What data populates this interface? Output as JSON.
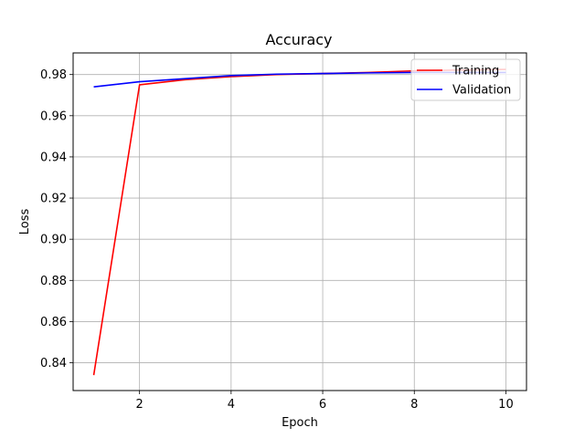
{
  "chart_data": {
    "type": "line",
    "title": "Accuracy",
    "xlabel": "Epoch",
    "ylabel": "Loss",
    "x": [
      1,
      2,
      3,
      4,
      5,
      6,
      7,
      8,
      9,
      10
    ],
    "xlim": [
      0.55,
      10.45
    ],
    "ylim": [
      0.8265,
      0.9905
    ],
    "xticks": [
      2,
      4,
      6,
      8,
      10
    ],
    "yticks": [
      0.84,
      0.86,
      0.88,
      0.9,
      0.92,
      0.94,
      0.96,
      0.98
    ],
    "ytick_labels": [
      "0.84",
      "0.86",
      "0.88",
      "0.90",
      "0.92",
      "0.94",
      "0.96",
      "0.98"
    ],
    "grid": true,
    "legend_position": "top-right",
    "series": [
      {
        "name": "Training",
        "color": "#ff0000",
        "values": [
          0.834,
          0.975,
          0.9775,
          0.979,
          0.98,
          0.9805,
          0.981,
          0.9818,
          0.9822,
          0.9825
        ]
      },
      {
        "name": "Validation",
        "color": "#0000ff",
        "values": [
          0.974,
          0.9765,
          0.978,
          0.9795,
          0.9802,
          0.9805,
          0.9808,
          0.981,
          0.981,
          0.981
        ]
      }
    ]
  }
}
